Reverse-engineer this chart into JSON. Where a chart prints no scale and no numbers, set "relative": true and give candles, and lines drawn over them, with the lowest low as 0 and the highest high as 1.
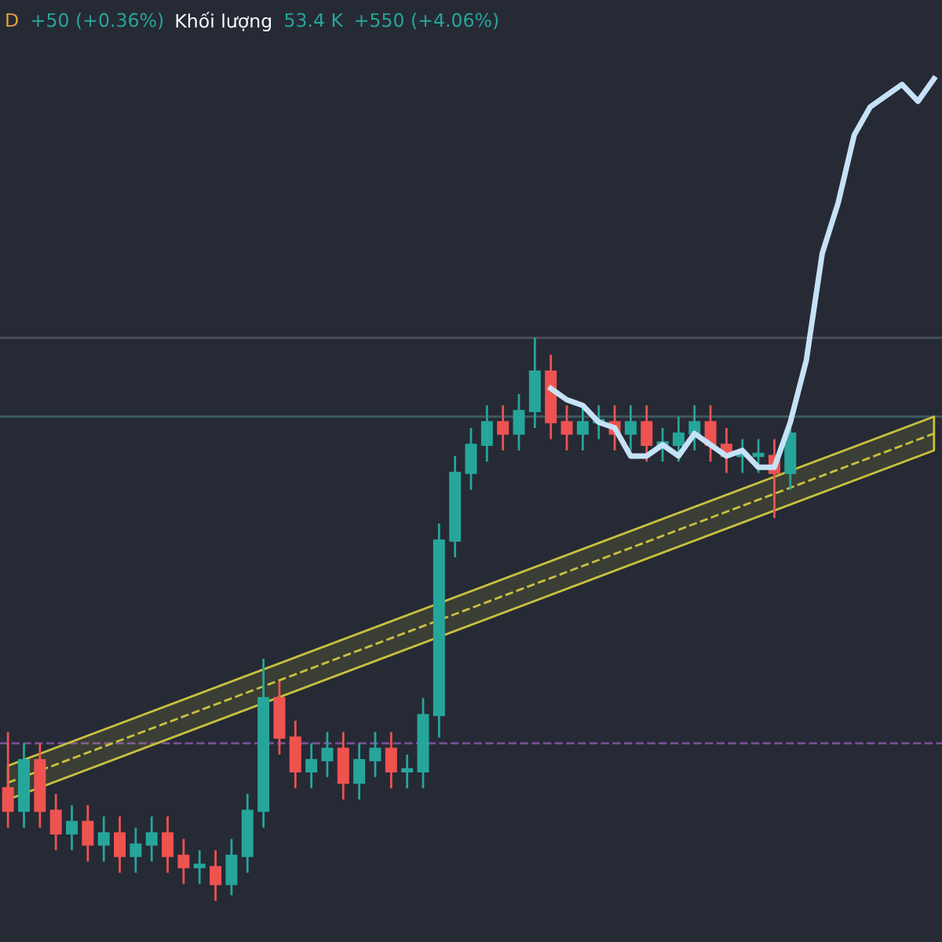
{
  "chart_data": {
    "type": "candlestick",
    "relative": true,
    "annotations": [
      "D",
      "+50 (+0.36%)",
      "Khối lượng",
      "53.4 K",
      "+550 (+4.06%)"
    ],
    "categories": [
      null,
      null,
      null,
      null,
      null,
      null,
      null,
      null,
      null,
      null,
      null,
      null,
      null,
      null,
      null,
      null,
      null,
      null,
      null,
      null,
      null,
      null,
      null,
      null,
      null,
      null,
      null,
      null,
      null,
      null,
      null,
      null,
      null,
      null,
      null,
      null,
      null,
      null,
      null,
      null,
      null,
      null,
      null,
      null,
      null,
      null,
      null,
      null,
      null,
      null,
      null,
      null,
      null,
      null,
      null,
      null,
      null,
      null,
      null
    ],
    "ohlc": [
      [
        0.2,
        0.3,
        0.13,
        0.16
      ],
      [
        0.16,
        0.28,
        0.13,
        0.25
      ],
      [
        0.25,
        0.28,
        0.13,
        0.16
      ],
      [
        0.16,
        0.19,
        0.09,
        0.12
      ],
      [
        0.12,
        0.17,
        0.09,
        0.14
      ],
      [
        0.14,
        0.17,
        0.07,
        0.1
      ],
      [
        0.1,
        0.15,
        0.07,
        0.12
      ],
      [
        0.12,
        0.15,
        0.05,
        0.08
      ],
      [
        0.08,
        0.13,
        0.05,
        0.1
      ],
      [
        0.1,
        0.15,
        0.07,
        0.12
      ],
      [
        0.12,
        0.15,
        0.05,
        0.08
      ],
      [
        0.08,
        0.11,
        0.03,
        0.06
      ],
      [
        0.06,
        0.09,
        0.03,
        0.06
      ],
      [
        0.06,
        0.09,
        0.0,
        0.03
      ],
      [
        0.03,
        0.11,
        0.01,
        0.08
      ],
      [
        0.08,
        0.19,
        0.05,
        0.16
      ],
      [
        0.16,
        0.43,
        0.13,
        0.36
      ],
      [
        0.36,
        0.39,
        0.26,
        0.29
      ],
      [
        0.29,
        0.32,
        0.2,
        0.23
      ],
      [
        0.23,
        0.28,
        0.2,
        0.25
      ],
      [
        0.25,
        0.3,
        0.22,
        0.27
      ],
      [
        0.27,
        0.3,
        0.18,
        0.21
      ],
      [
        0.21,
        0.28,
        0.18,
        0.25
      ],
      [
        0.25,
        0.3,
        0.22,
        0.27
      ],
      [
        0.27,
        0.3,
        0.2,
        0.23
      ],
      [
        0.23,
        0.26,
        0.2,
        0.23
      ],
      [
        0.23,
        0.36,
        0.2,
        0.33
      ],
      [
        0.33,
        0.67,
        0.29,
        0.64
      ],
      [
        0.64,
        0.79,
        0.61,
        0.76
      ],
      [
        0.76,
        0.84,
        0.73,
        0.81
      ],
      [
        0.81,
        0.88,
        0.78,
        0.85
      ],
      [
        0.85,
        0.88,
        0.8,
        0.83
      ],
      [
        0.83,
        0.9,
        0.8,
        0.87
      ],
      [
        0.87,
        1.0,
        0.84,
        0.94
      ],
      [
        0.94,
        0.97,
        0.82,
        0.85
      ],
      [
        0.85,
        0.88,
        0.8,
        0.83
      ],
      [
        0.83,
        0.88,
        0.8,
        0.85
      ],
      [
        0.85,
        0.88,
        0.82,
        0.85
      ],
      [
        0.85,
        0.88,
        0.8,
        0.83
      ],
      [
        0.83,
        0.88,
        0.8,
        0.85
      ],
      [
        0.85,
        0.88,
        0.78,
        0.81
      ],
      [
        0.81,
        0.84,
        0.78,
        0.81
      ],
      [
        0.81,
        0.86,
        0.78,
        0.83
      ],
      [
        0.83,
        0.88,
        0.8,
        0.85
      ],
      [
        0.85,
        0.88,
        0.78,
        0.81
      ],
      [
        0.81,
        0.84,
        0.76,
        0.79
      ],
      [
        0.79,
        0.82,
        0.76,
        0.79
      ],
      [
        0.79,
        0.82,
        0.76,
        0.79
      ],
      [
        0.79,
        0.82,
        0.68,
        0.76
      ],
      [
        0.76,
        0.86,
        0.73,
        0.83
      ],
      null,
      null,
      null,
      null,
      null,
      null,
      null,
      null,
      null
    ],
    "series": [
      {
        "type": "line",
        "color": "#c6e2f7",
        "values": [
          null,
          null,
          null,
          null,
          null,
          null,
          null,
          null,
          null,
          null,
          null,
          null,
          null,
          null,
          null,
          null,
          null,
          null,
          null,
          null,
          null,
          null,
          null,
          null,
          null,
          null,
          null,
          null,
          null,
          null,
          null,
          null,
          null,
          null,
          0.91,
          0.89,
          0.88,
          0.85,
          0.84,
          0.79,
          0.79,
          0.81,
          0.79,
          0.83,
          0.81,
          0.79,
          0.8,
          0.77,
          0.77,
          0.85,
          0.96,
          1.15,
          1.24,
          1.36,
          1.41,
          1.43,
          1.45,
          1.42,
          1.46
        ]
      },
      {
        "type": "line",
        "color": "#c9c23f",
        "line_style": "dashed",
        "values": [
          0.21,
          null,
          null,
          null,
          null,
          null,
          null,
          null,
          null,
          null,
          null,
          null,
          null,
          null,
          null,
          null,
          null,
          null,
          null,
          null,
          null,
          null,
          null,
          null,
          null,
          null,
          null,
          null,
          null,
          null,
          null,
          null,
          null,
          null,
          null,
          null,
          null,
          null,
          null,
          null,
          null,
          null,
          null,
          null,
          null,
          null,
          null,
          null,
          null,
          null,
          null,
          null,
          null,
          null,
          null,
          null,
          null,
          null,
          0.83
        ],
        "lower": [
          0.18,
          null,
          null,
          null,
          null,
          null,
          null,
          null,
          null,
          null,
          null,
          null,
          null,
          null,
          null,
          null,
          null,
          null,
          null,
          null,
          null,
          null,
          null,
          null,
          null,
          null,
          null,
          null,
          null,
          null,
          null,
          null,
          null,
          null,
          null,
          null,
          null,
          null,
          null,
          null,
          null,
          null,
          null,
          null,
          null,
          null,
          null,
          null,
          null,
          null,
          null,
          null,
          null,
          null,
          null,
          null,
          null,
          null,
          0.8
        ],
        "upper": [
          0.24,
          null,
          null,
          null,
          null,
          null,
          null,
          null,
          null,
          null,
          null,
          null,
          null,
          null,
          null,
          null,
          null,
          null,
          null,
          null,
          null,
          null,
          null,
          null,
          null,
          null,
          null,
          null,
          null,
          null,
          null,
          null,
          null,
          null,
          null,
          null,
          null,
          null,
          null,
          null,
          null,
          null,
          null,
          null,
          null,
          null,
          null,
          null,
          null,
          null,
          null,
          null,
          null,
          null,
          null,
          null,
          null,
          null,
          0.86
        ]
      }
    ],
    "ref_lines": [
      {
        "axis": "y",
        "value": 1.0,
        "color": "#4a505c",
        "line_style": "solid"
      },
      {
        "axis": "y",
        "value": 0.86,
        "color": "#3d5a60",
        "line_style": "solid"
      },
      {
        "axis": "y",
        "value": 0.28,
        "color": "#7a4f9a",
        "line_style": "dashed"
      }
    ],
    "legend": false
  }
}
